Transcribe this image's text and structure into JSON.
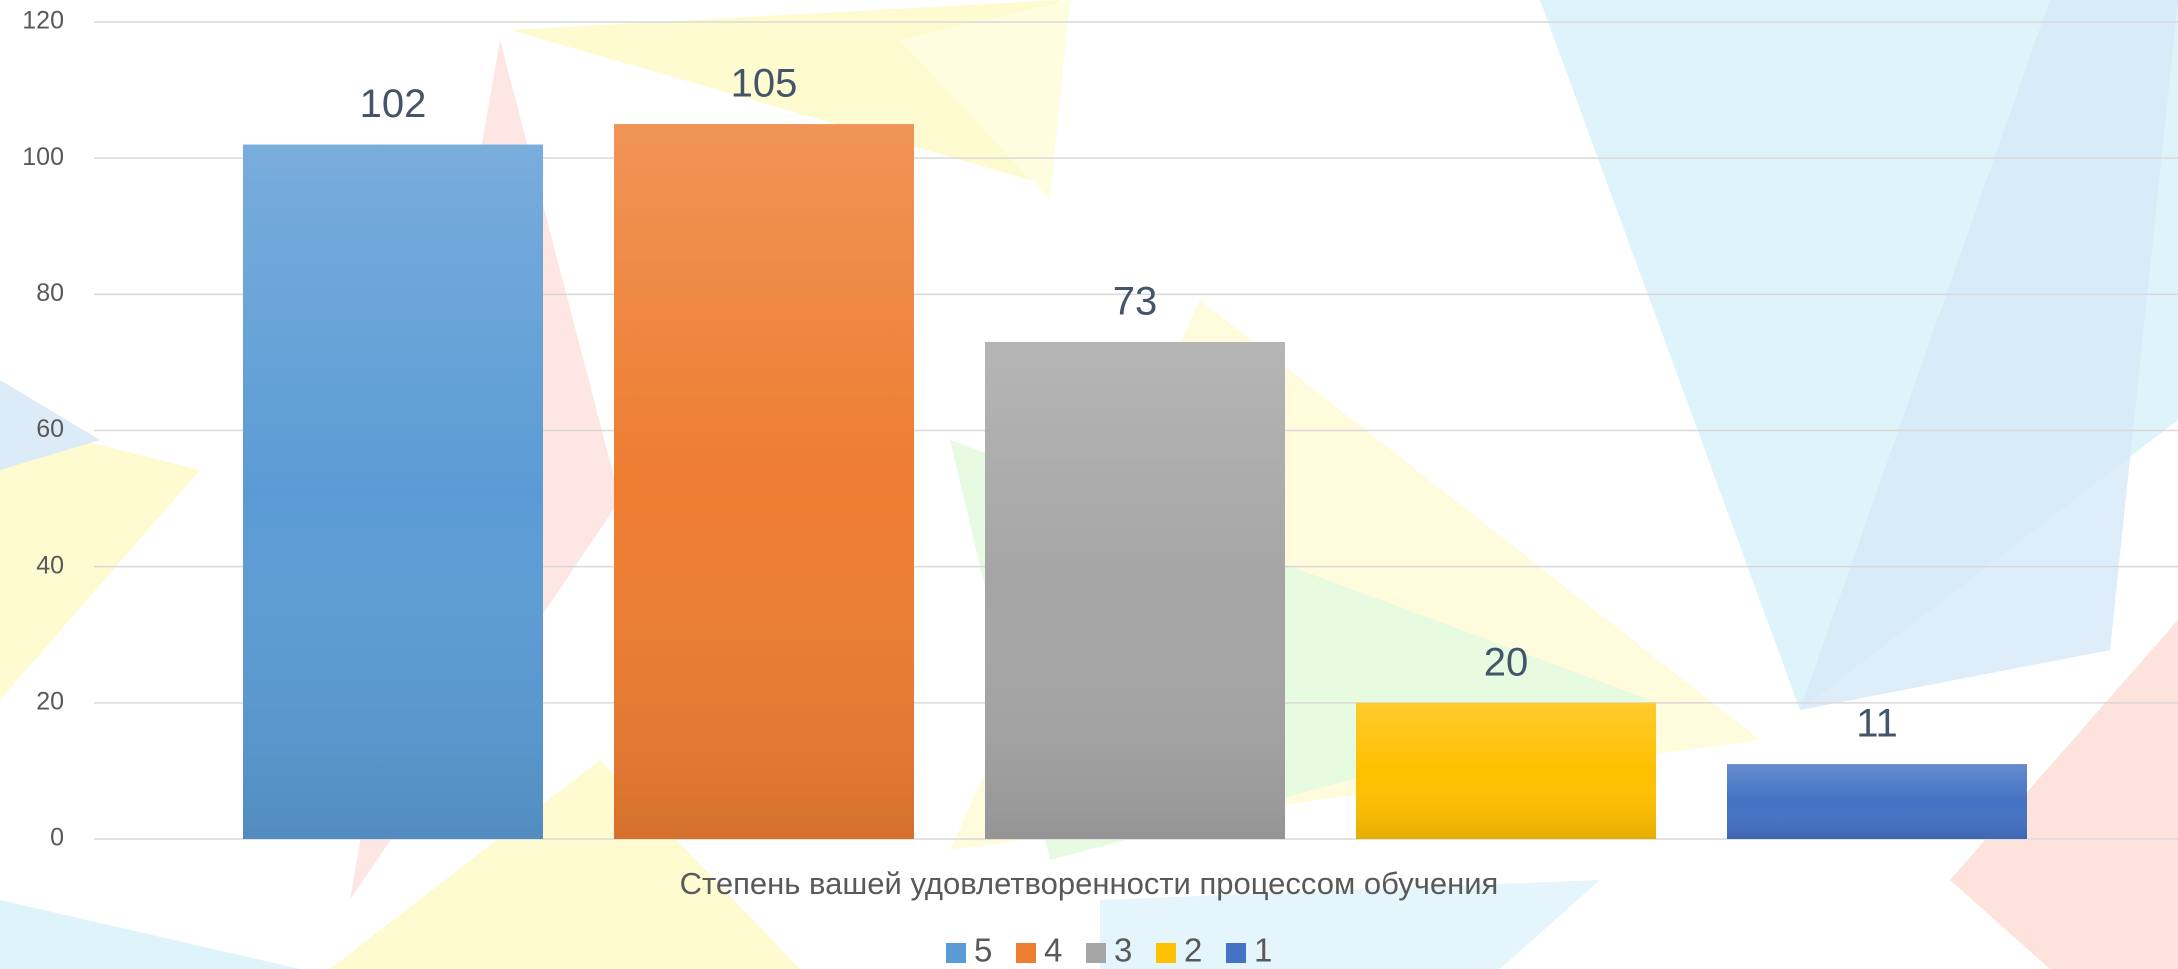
{
  "chart_data": {
    "type": "bar",
    "categories": [
      "Степень вашей удовлетворенности процессом обучения"
    ],
    "series": [
      {
        "name": "5",
        "color": "#5b9bd5",
        "values": [
          102
        ]
      },
      {
        "name": "4",
        "color": "#ed7d31",
        "values": [
          105
        ]
      },
      {
        "name": "3",
        "color": "#a5a5a5",
        "values": [
          73
        ]
      },
      {
        "name": "2",
        "color": "#ffc000",
        "values": [
          20
        ]
      },
      {
        "name": "1",
        "color": "#4472c4",
        "values": [
          11
        ]
      }
    ],
    "ylim": [
      0,
      120
    ],
    "yticks": [
      0,
      20,
      40,
      60,
      80,
      100,
      120
    ],
    "grid": true,
    "legend": "bottom"
  }
}
